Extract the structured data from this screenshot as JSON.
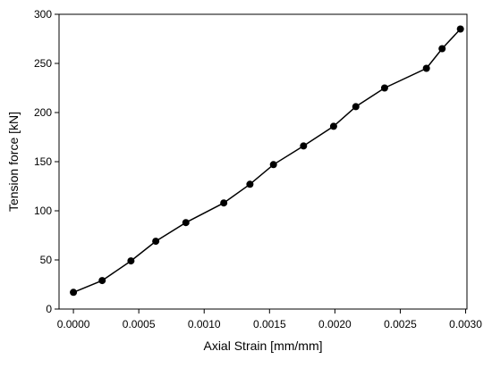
{
  "chart_data": {
    "type": "line",
    "x_label": "Axial Strain [mm/mm]",
    "y_label": "Tension force [kN]",
    "x": [
      0,
      0.00022,
      0.00044,
      0.00063,
      0.00086,
      0.00115,
      0.00135,
      0.00153,
      0.00176,
      0.00199,
      0.00216,
      0.00238,
      0.0027,
      0.00282,
      0.00296
    ],
    "series": [
      {
        "color": "#000000",
        "values": [
          17,
          29,
          49,
          69,
          88,
          108,
          127,
          147,
          166,
          186,
          206,
          225,
          245,
          265,
          285
        ]
      }
    ],
    "xlim": [
      -0.00011,
      0.00301
    ],
    "ylim": [
      0,
      300
    ],
    "xticks": [
      {
        "value": 0,
        "label": "0.0000"
      },
      {
        "value": 0.0005,
        "label": "0.0005"
      },
      {
        "value": 0.001,
        "label": "0.0010"
      },
      {
        "value": 0.0015,
        "label": "0.0015"
      },
      {
        "value": 0.002,
        "label": "0.0020"
      },
      {
        "value": 0.0025,
        "label": "0.0025"
      },
      {
        "value": 0.003,
        "label": "0.0030"
      }
    ],
    "yticks": [
      0,
      50,
      100,
      150,
      200,
      250,
      300
    ],
    "grid": false,
    "markers": true
  }
}
